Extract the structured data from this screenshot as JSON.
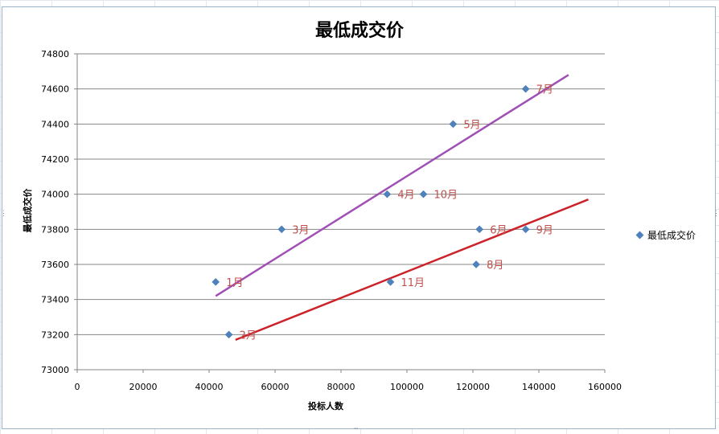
{
  "chart_data": {
    "type": "scatter",
    "title": "最低成交价",
    "xlabel": "投标人数",
    "ylabel": "最低成交价",
    "xlim": [
      0,
      160000
    ],
    "ylim": [
      73000,
      74800
    ],
    "x_ticks": [
      0,
      20000,
      40000,
      60000,
      80000,
      100000,
      120000,
      140000,
      160000
    ],
    "y_ticks": [
      73000,
      73200,
      73400,
      73600,
      73800,
      74000,
      74200,
      74400,
      74600,
      74800
    ],
    "grid": "horizontal",
    "legend_position": "right",
    "series": [
      {
        "name": "最低成交价",
        "color": "#4f81bd",
        "marker": "diamond",
        "points": [
          {
            "x": 42000,
            "y": 73500,
            "label": "1月"
          },
          {
            "x": 46000,
            "y": 73200,
            "label": "2月"
          },
          {
            "x": 62000,
            "y": 73800,
            "label": "3月"
          },
          {
            "x": 94000,
            "y": 74000,
            "label": "4月"
          },
          {
            "x": 114000,
            "y": 74400,
            "label": "5月"
          },
          {
            "x": 122000,
            "y": 73800,
            "label": "6月"
          },
          {
            "x": 136000,
            "y": 74600,
            "label": "7月"
          },
          {
            "x": 121000,
            "y": 73600,
            "label": "8月"
          },
          {
            "x": 136000,
            "y": 73800,
            "label": "9月"
          },
          {
            "x": 105000,
            "y": 74000,
            "label": "10月"
          },
          {
            "x": 95000,
            "y": 73500,
            "label": "11月"
          }
        ]
      }
    ],
    "trend_lines": [
      {
        "color": "#a04fb5",
        "from": {
          "x": 42000,
          "y": 73420
        },
        "to": {
          "x": 149000,
          "y": 74680
        }
      },
      {
        "color": "#cc2229",
        "from": {
          "x": 48000,
          "y": 73170
        },
        "to": {
          "x": 155000,
          "y": 73970
        }
      }
    ]
  }
}
